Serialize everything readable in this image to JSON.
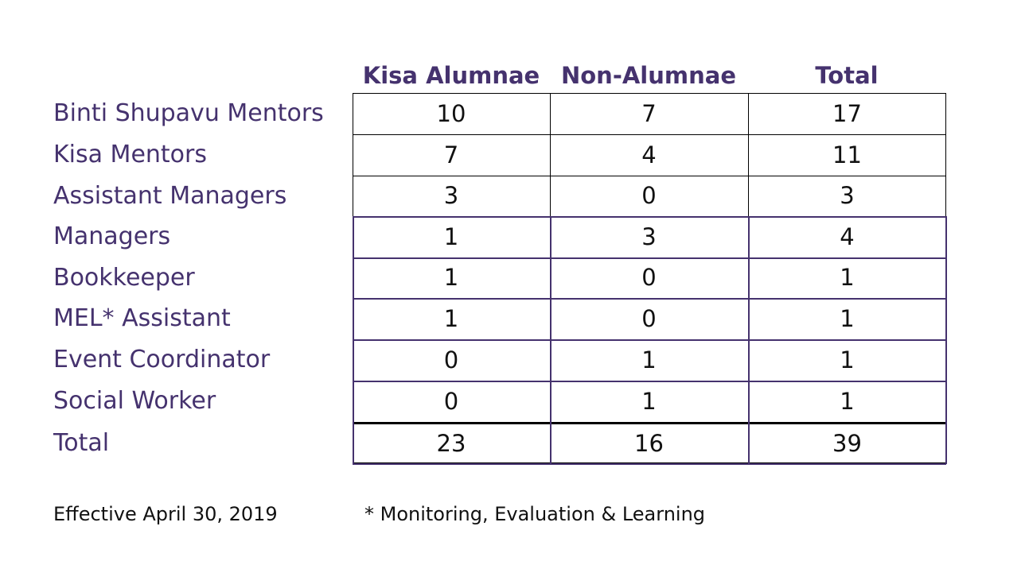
{
  "table": {
    "columns": [
      "Kisa Alumnae",
      "Non-Alumnae",
      "Total"
    ],
    "rows": [
      {
        "label": "Binti Shupavu Mentors",
        "values": [
          "10",
          "7",
          "17"
        ]
      },
      {
        "label": "Kisa Mentors",
        "values": [
          "7",
          "4",
          "11"
        ]
      },
      {
        "label": "Assistant Managers",
        "values": [
          "3",
          "0",
          "3"
        ]
      },
      {
        "label": "Managers",
        "values": [
          "1",
          "3",
          "4"
        ]
      },
      {
        "label": "Bookkeeper",
        "values": [
          "1",
          "0",
          "1"
        ]
      },
      {
        "label": "MEL* Assistant",
        "values": [
          "1",
          "0",
          "1"
        ]
      },
      {
        "label": "Event Coordinator",
        "values": [
          "0",
          "1",
          "1"
        ]
      },
      {
        "label": "Social Worker",
        "values": [
          "0",
          "1",
          "1"
        ]
      },
      {
        "label": "Total",
        "values": [
          "23",
          "16",
          "39"
        ]
      }
    ]
  },
  "footer": {
    "effective": "Effective April 30, 2019",
    "footnote": "* Monitoring, Evaluation & Learning"
  },
  "colors": {
    "label_color": "#45326e",
    "text_color": "#111111",
    "border_dark": "#000000",
    "border_purple": "#45326e"
  }
}
